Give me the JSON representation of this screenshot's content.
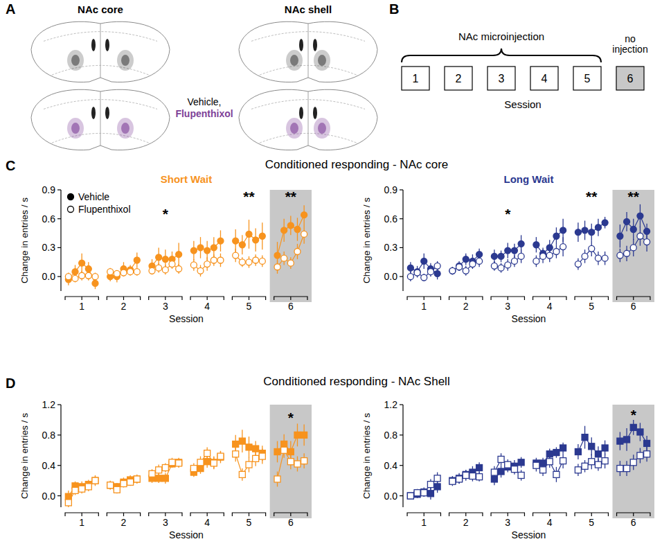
{
  "panel_labels": [
    "A",
    "B",
    "C",
    "D"
  ],
  "panel_a": {
    "sections": [
      "NAc core",
      "NAc shell"
    ],
    "legend": [
      {
        "label": "Vehicle,",
        "color": "#000000"
      },
      {
        "label": "Flupenthixol",
        "color": "#7e3f98"
      }
    ]
  },
  "panel_b": {
    "sessions": [
      1,
      2,
      3,
      4,
      5,
      6
    ],
    "brace_label": "NAc microinjection",
    "last_label": "no injection",
    "axis_label": "Session"
  },
  "row_titles": [
    "Conditioned responding - NAc core",
    "Conditioned responding - NAc Shell"
  ],
  "chart_data": [
    {
      "type": "line",
      "title": "Short Wait",
      "x_label": "Session",
      "y_label": "Change in entries / s",
      "x": [
        0.68,
        0.84,
        1,
        1.16,
        1.32,
        1.68,
        1.84,
        2,
        2.16,
        2.32,
        2.68,
        2.84,
        3,
        3.16,
        3.32,
        3.68,
        3.84,
        4,
        4.16,
        4.32,
        4.68,
        4.84,
        5,
        5.16,
        5.32,
        5.68,
        5.84,
        6,
        6.16,
        6.32
      ],
      "xlim": [
        0.5,
        6.5
      ],
      "xticks": [
        1,
        2,
        3,
        4,
        5,
        6
      ],
      "ylim": [
        -0.15,
        0.9
      ],
      "yticks": [
        {
          "value": 0,
          "label": "0.0"
        },
        0.3,
        0.6,
        0.9
      ],
      "highlight_x": [
        5.5,
        6.5
      ],
      "legend": "upper left",
      "series": [
        {
          "name": "Vehicle",
          "color": "#f7931e",
          "marker": "circle",
          "line_style": "solid",
          "values": [
            -0.03,
            0.05,
            0.14,
            0.08,
            -0.07,
            0.0,
            0.0,
            0.08,
            0.07,
            0.17,
            0.11,
            0.2,
            0.18,
            0.18,
            0.23,
            0.27,
            0.3,
            0.27,
            0.3,
            0.37,
            0.37,
            0.33,
            0.44,
            0.38,
            0.42,
            0.22,
            0.48,
            0.53,
            0.49,
            0.64
          ],
          "errors": [
            0.06,
            0.07,
            0.1,
            0.07,
            0.06,
            0.05,
            0.06,
            0.07,
            0.05,
            0.08,
            0.07,
            0.1,
            0.1,
            0.08,
            0.12,
            0.1,
            0.11,
            0.1,
            0.11,
            0.11,
            0.12,
            0.1,
            0.15,
            0.12,
            0.14,
            0.14,
            0.12,
            0.1,
            0.12,
            0.1
          ]
        },
        {
          "name": "Flupenthixol",
          "color": "#f7931e",
          "marker": "open-circle",
          "line_style": "solid",
          "values": [
            0.0,
            -0.02,
            0.01,
            0.01,
            0.0,
            0.05,
            0.03,
            0.04,
            0.05,
            0.05,
            0.06,
            0.09,
            0.07,
            0.13,
            0.08,
            0.12,
            0.06,
            0.13,
            0.17,
            0.17,
            0.22,
            0.15,
            0.15,
            0.17,
            0.16,
            0.1,
            0.19,
            0.14,
            0.26,
            0.44
          ],
          "errors": [
            0.04,
            0.04,
            0.05,
            0.05,
            0.04,
            0.04,
            0.03,
            0.04,
            0.04,
            0.04,
            0.04,
            0.05,
            0.05,
            0.05,
            0.05,
            0.06,
            0.06,
            0.07,
            0.06,
            0.07,
            0.07,
            0.05,
            0.06,
            0.06,
            0.06,
            0.07,
            0.07,
            0.06,
            0.08,
            0.1
          ]
        }
      ],
      "annotations": [
        {
          "text": "*",
          "x": 3,
          "y": 0.68
        },
        {
          "text": "**",
          "x": 5,
          "y": 0.86
        },
        {
          "text": "**",
          "x": 6,
          "y": 0.86
        }
      ]
    },
    {
      "type": "line",
      "title": "Long Wait",
      "x_label": "Session",
      "y_label": "Change in entries / s",
      "x": [
        0.68,
        0.84,
        1,
        1.16,
        1.32,
        1.68,
        1.84,
        2,
        2.16,
        2.32,
        2.68,
        2.84,
        3,
        3.16,
        3.32,
        3.68,
        3.84,
        4,
        4.16,
        4.32,
        4.68,
        4.84,
        5,
        5.16,
        5.32,
        5.68,
        5.84,
        6,
        6.16,
        6.32
      ],
      "xlim": [
        0.5,
        6.5
      ],
      "xticks": [
        1,
        2,
        3,
        4,
        5,
        6
      ],
      "ylim": [
        -0.15,
        0.9
      ],
      "yticks": [
        {
          "value": 0,
          "label": "0.0"
        },
        0.3,
        0.6,
        0.9
      ],
      "highlight_x": [
        5.5,
        6.5
      ],
      "series": [
        {
          "color": "#2b3990",
          "marker": "circle",
          "line_style": "solid",
          "values": [
            0.09,
            0.05,
            0.16,
            0.08,
            0.03,
            0.06,
            0.11,
            0.18,
            0.16,
            0.23,
            0.21,
            0.21,
            0.27,
            0.27,
            0.34,
            0.33,
            0.24,
            0.3,
            0.42,
            0.48,
            0.46,
            0.48,
            0.46,
            0.51,
            0.56,
            0.42,
            0.57,
            0.49,
            0.63,
            0.47
          ],
          "errors": [
            0.06,
            0.06,
            0.08,
            0.06,
            0.06,
            0.04,
            0.05,
            0.06,
            0.07,
            0.06,
            0.07,
            0.06,
            0.08,
            0.07,
            0.09,
            0.08,
            0.06,
            0.08,
            0.09,
            0.12,
            0.1,
            0.1,
            0.09,
            0.09,
            0.06,
            0.12,
            0.1,
            0.11,
            0.12,
            0.08
          ]
        },
        {
          "color": "#2b3990",
          "marker": "open-circle",
          "line_style": "solid",
          "values": [
            0.0,
            0.04,
            -0.01,
            0.05,
            0.11,
            0.06,
            0.1,
            0.06,
            0.13,
            0.16,
            0.11,
            0.09,
            0.12,
            0.16,
            0.21,
            0.16,
            0.21,
            0.22,
            0.26,
            0.31,
            0.13,
            0.21,
            0.29,
            0.19,
            0.19,
            0.22,
            0.24,
            0.3,
            0.42,
            0.36
          ],
          "errors": [
            0.05,
            0.04,
            0.04,
            0.05,
            0.05,
            0.04,
            0.04,
            0.05,
            0.05,
            0.06,
            0.05,
            0.05,
            0.06,
            0.06,
            0.07,
            0.06,
            0.07,
            0.07,
            0.07,
            0.1,
            0.06,
            0.07,
            0.08,
            0.07,
            0.07,
            0.07,
            0.08,
            0.09,
            0.1,
            0.1
          ]
        }
      ],
      "annotations": [
        {
          "text": "*",
          "x": 3,
          "y": 0.68
        },
        {
          "text": "**",
          "x": 5,
          "y": 0.86
        },
        {
          "text": "**",
          "x": 6,
          "y": 0.86
        }
      ]
    },
    {
      "type": "line",
      "x_label": "Session",
      "y_label": "Change in entries / s",
      "x": [
        0.68,
        0.84,
        1,
        1.16,
        1.32,
        1.68,
        1.84,
        2,
        2.16,
        2.32,
        2.68,
        2.84,
        3,
        3.16,
        3.32,
        3.68,
        3.84,
        4,
        4.16,
        4.32,
        4.68,
        4.84,
        5,
        5.16,
        5.32,
        5.68,
        5.84,
        6,
        6.16,
        6.32
      ],
      "xlim": [
        0.5,
        6.5
      ],
      "xticks": [
        1,
        2,
        3,
        4,
        5,
        6
      ],
      "ylim": [
        -0.15,
        1.2
      ],
      "yticks": [
        {
          "value": 0,
          "label": "0.0"
        },
        0.4,
        0.8,
        1.2
      ],
      "highlight_x": [
        5.5,
        6.5
      ],
      "series": [
        {
          "color": "#f7931e",
          "marker": "square",
          "line_style": "solid",
          "values": [
            -0.01,
            0.13,
            0.12,
            0.15,
            0.2,
            0.14,
            0.12,
            0.18,
            0.21,
            0.22,
            0.23,
            0.23,
            0.23,
            0.42,
            0.44,
            0.31,
            0.36,
            0.45,
            0.44,
            0.51,
            0.68,
            0.72,
            0.64,
            0.62,
            0.56,
            0.58,
            0.68,
            0.58,
            0.8,
            0.8
          ],
          "errors": [
            0.08,
            0.06,
            0.07,
            0.06,
            0.07,
            0.06,
            0.05,
            0.06,
            0.06,
            0.06,
            0.06,
            0.06,
            0.07,
            0.05,
            0.06,
            0.06,
            0.07,
            0.08,
            0.08,
            0.08,
            0.12,
            0.15,
            0.14,
            0.1,
            0.1,
            0.14,
            0.13,
            0.14,
            0.15,
            0.14
          ]
        },
        {
          "color": "#f7931e",
          "marker": "open-square",
          "line_style": "solid",
          "values": [
            -0.09,
            0.07,
            0.09,
            0.12,
            0.2,
            0.14,
            0.08,
            0.16,
            0.18,
            0.22,
            0.29,
            0.34,
            0.37,
            0.44,
            0.43,
            0.36,
            0.44,
            0.56,
            0.43,
            0.52,
            0.55,
            0.28,
            0.41,
            0.49,
            0.52,
            0.22,
            0.6,
            0.45,
            0.42,
            0.46
          ],
          "errors": [
            0.07,
            0.06,
            0.06,
            0.06,
            0.06,
            0.05,
            0.05,
            0.05,
            0.05,
            0.05,
            0.06,
            0.07,
            0.06,
            0.06,
            0.06,
            0.07,
            0.08,
            0.08,
            0.08,
            0.07,
            0.1,
            0.08,
            0.1,
            0.1,
            0.1,
            0.1,
            0.1,
            0.1,
            0.1,
            0.1
          ]
        }
      ],
      "annotations": [
        {
          "text": "*",
          "x": 6,
          "y": 1.06
        }
      ]
    },
    {
      "type": "line",
      "x_label": "Session",
      "y_label": "Change in entries / s",
      "x": [
        0.68,
        0.84,
        1,
        1.16,
        1.32,
        1.68,
        1.84,
        2,
        2.16,
        2.32,
        2.68,
        2.84,
        3,
        3.16,
        3.32,
        3.68,
        3.84,
        4,
        4.16,
        4.32,
        4.68,
        4.84,
        5,
        5.16,
        5.32,
        5.68,
        5.84,
        6,
        6.16,
        6.32
      ],
      "xlim": [
        0.5,
        6.5
      ],
      "xticks": [
        1,
        2,
        3,
        4,
        5,
        6
      ],
      "ylim": [
        -0.15,
        1.2
      ],
      "yticks": [
        {
          "value": 0,
          "label": "0.0"
        },
        0.4,
        0.8,
        1.2
      ],
      "highlight_x": [
        5.5,
        6.5
      ],
      "series": [
        {
          "color": "#2b3990",
          "marker": "square",
          "line_style": "solid",
          "values": [
            0.0,
            0.02,
            0.05,
            0.03,
            0.12,
            0.2,
            0.23,
            0.28,
            0.31,
            0.37,
            0.22,
            0.32,
            0.38,
            0.39,
            0.44,
            0.43,
            0.43,
            0.55,
            0.57,
            0.63,
            0.58,
            0.77,
            0.65,
            0.55,
            0.63,
            0.72,
            0.74,
            0.9,
            0.84,
            0.69
          ],
          "errors": [
            0.04,
            0.05,
            0.06,
            0.08,
            0.08,
            0.06,
            0.07,
            0.06,
            0.08,
            0.07,
            0.08,
            0.08,
            0.07,
            0.08,
            0.07,
            0.07,
            0.07,
            0.07,
            0.07,
            0.07,
            0.1,
            0.15,
            0.12,
            0.1,
            0.1,
            0.12,
            0.15,
            0.1,
            0.12,
            0.1
          ]
        },
        {
          "color": "#2b3990",
          "marker": "open-square",
          "line_style": "solid",
          "values": [
            0.0,
            0.04,
            0.04,
            0.15,
            0.23,
            0.19,
            0.22,
            0.27,
            0.26,
            0.25,
            0.31,
            0.48,
            0.41,
            0.35,
            0.27,
            0.4,
            0.34,
            0.45,
            0.28,
            0.46,
            0.34,
            0.39,
            0.45,
            0.41,
            0.46,
            0.36,
            0.36,
            0.44,
            0.53,
            0.55
          ],
          "errors": [
            0.04,
            0.05,
            0.05,
            0.07,
            0.08,
            0.06,
            0.06,
            0.07,
            0.07,
            0.06,
            0.08,
            0.08,
            0.07,
            0.07,
            0.07,
            0.08,
            0.08,
            0.08,
            0.1,
            0.1,
            0.08,
            0.08,
            0.1,
            0.08,
            0.1,
            0.1,
            0.1,
            0.1,
            0.1,
            0.1
          ]
        }
      ],
      "annotations": [
        {
          "text": "*",
          "x": 6,
          "y": 1.1
        }
      ]
    }
  ]
}
